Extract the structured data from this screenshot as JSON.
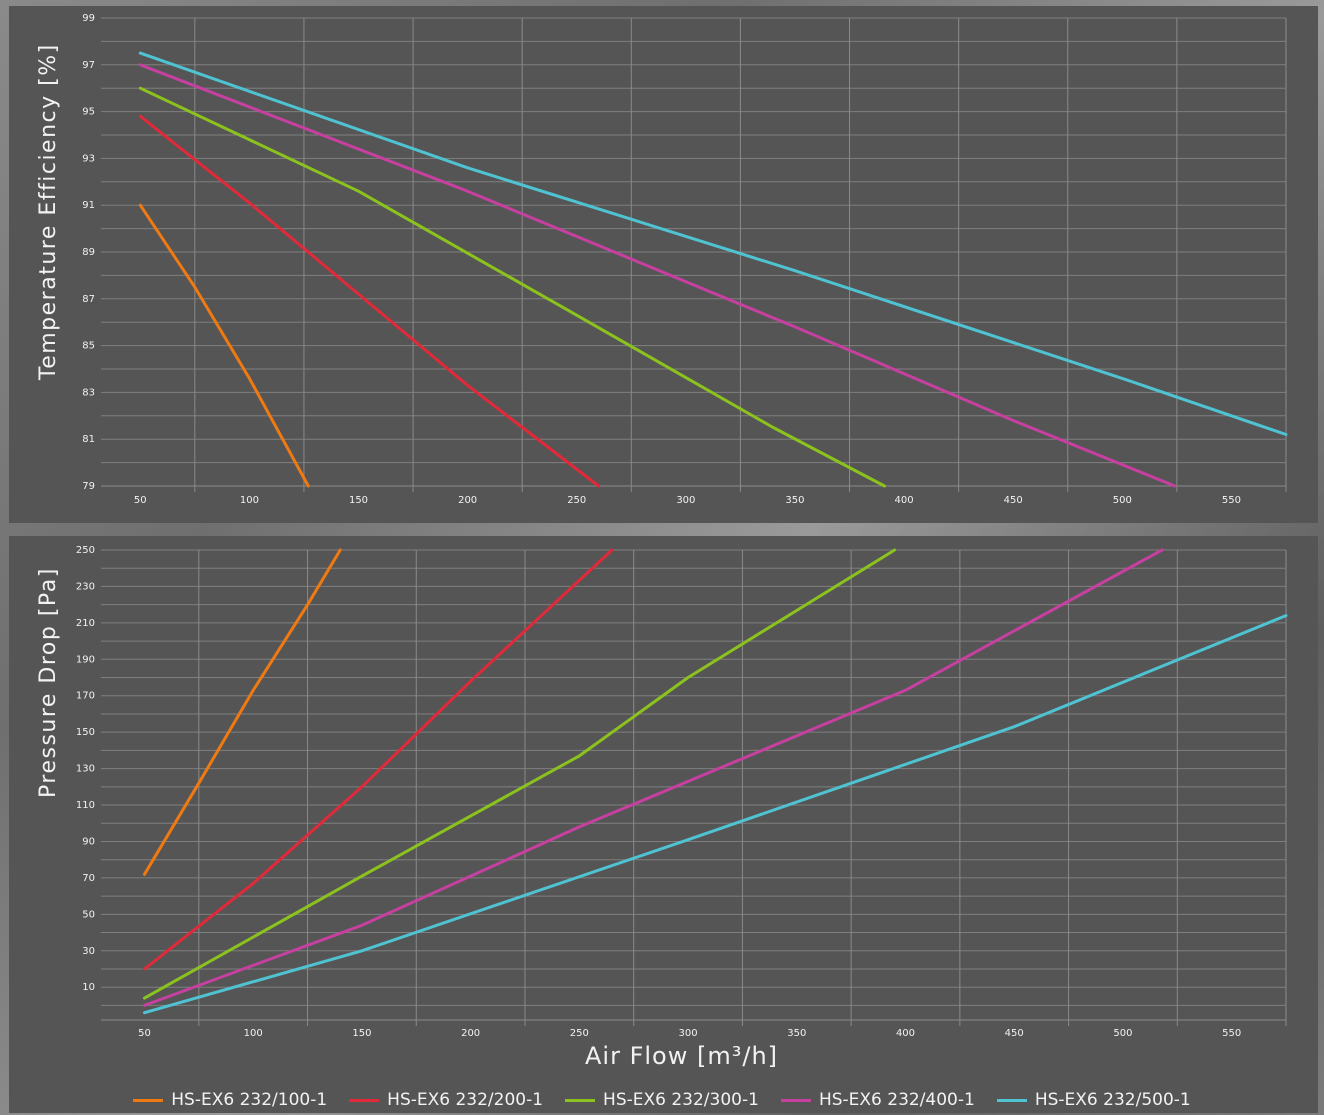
{
  "colors": {
    "series": [
      "#f07a12",
      "#e02a3a",
      "#8cc21e",
      "#c640a0",
      "#4fc3d2"
    ],
    "grid": "#8a8a8a",
    "panel": "#555555",
    "text": "#f2f2f2"
  },
  "legend": [
    {
      "label": "HS-EX6 232/100-1"
    },
    {
      "label": "HS-EX6 232/200-1"
    },
    {
      "label": "HS-EX6 232/300-1"
    },
    {
      "label": "HS-EX6 232/400-1"
    },
    {
      "label": "HS-EX6 232/500-1"
    }
  ],
  "chart_data": [
    {
      "type": "line",
      "title": "",
      "ylabel": "Temperature Efficiency [%]",
      "xlabel": "",
      "xlim": [
        32,
        575
      ],
      "ylim": [
        79,
        99
      ],
      "xticks": [
        50,
        100,
        150,
        200,
        250,
        300,
        350,
        400,
        450,
        500,
        550
      ],
      "yticks": [
        79,
        81,
        83,
        85,
        87,
        89,
        91,
        93,
        95,
        97,
        99
      ],
      "grid": true,
      "series": [
        {
          "name": "HS-EX6 232/100-1",
          "x": [
            50,
            75,
            100,
            127
          ],
          "y": [
            91,
            87.5,
            83.6,
            79
          ]
        },
        {
          "name": "HS-EX6 232/200-1",
          "x": [
            50,
            100,
            150,
            200,
            260
          ],
          "y": [
            94.8,
            91.1,
            87.2,
            83.3,
            79
          ]
        },
        {
          "name": "HS-EX6 232/300-1",
          "x": [
            50,
            150,
            250,
            340,
            391
          ],
          "y": [
            96,
            91.6,
            86.3,
            81.5,
            79
          ]
        },
        {
          "name": "HS-EX6 232/400-1",
          "x": [
            50,
            200,
            350,
            450,
            524
          ],
          "y": [
            97,
            91.6,
            85.8,
            81.8,
            79
          ]
        },
        {
          "name": "HS-EX6 232/500-1",
          "x": [
            50,
            200,
            350,
            500,
            575
          ],
          "y": [
            97.5,
            92.6,
            88.2,
            83.6,
            81.2
          ]
        }
      ]
    },
    {
      "type": "line",
      "title": "",
      "ylabel": "Pressure Drop [Pa]",
      "xlabel": "Air Flow [m³/h]",
      "xlim": [
        30,
        575
      ],
      "ylim": [
        -8,
        250
      ],
      "xticks": [
        50,
        100,
        150,
        200,
        250,
        300,
        350,
        400,
        450,
        500,
        550
      ],
      "yticks": [
        10,
        30,
        50,
        70,
        90,
        110,
        130,
        150,
        170,
        190,
        210,
        230,
        250
      ],
      "grid": true,
      "series": [
        {
          "name": "HS-EX6 232/100-1",
          "x": [
            50,
            75,
            100,
            125,
            140
          ],
          "y": [
            72,
            122,
            173,
            220,
            250
          ]
        },
        {
          "name": "HS-EX6 232/200-1",
          "x": [
            50,
            100,
            150,
            200,
            265
          ],
          "y": [
            20,
            67,
            120,
            178,
            250
          ]
        },
        {
          "name": "HS-EX6 232/300-1",
          "x": [
            50,
            150,
            250,
            300,
            395
          ],
          "y": [
            4,
            71,
            137,
            180,
            250
          ]
        },
        {
          "name": "HS-EX6 232/400-1",
          "x": [
            50,
            150,
            250,
            400,
            518
          ],
          "y": [
            0,
            44,
            98,
            173,
            250
          ]
        },
        {
          "name": "HS-EX6 232/500-1",
          "x": [
            50,
            150,
            300,
            450,
            575
          ],
          "y": [
            -4,
            30,
            91,
            153,
            214
          ]
        }
      ]
    }
  ]
}
